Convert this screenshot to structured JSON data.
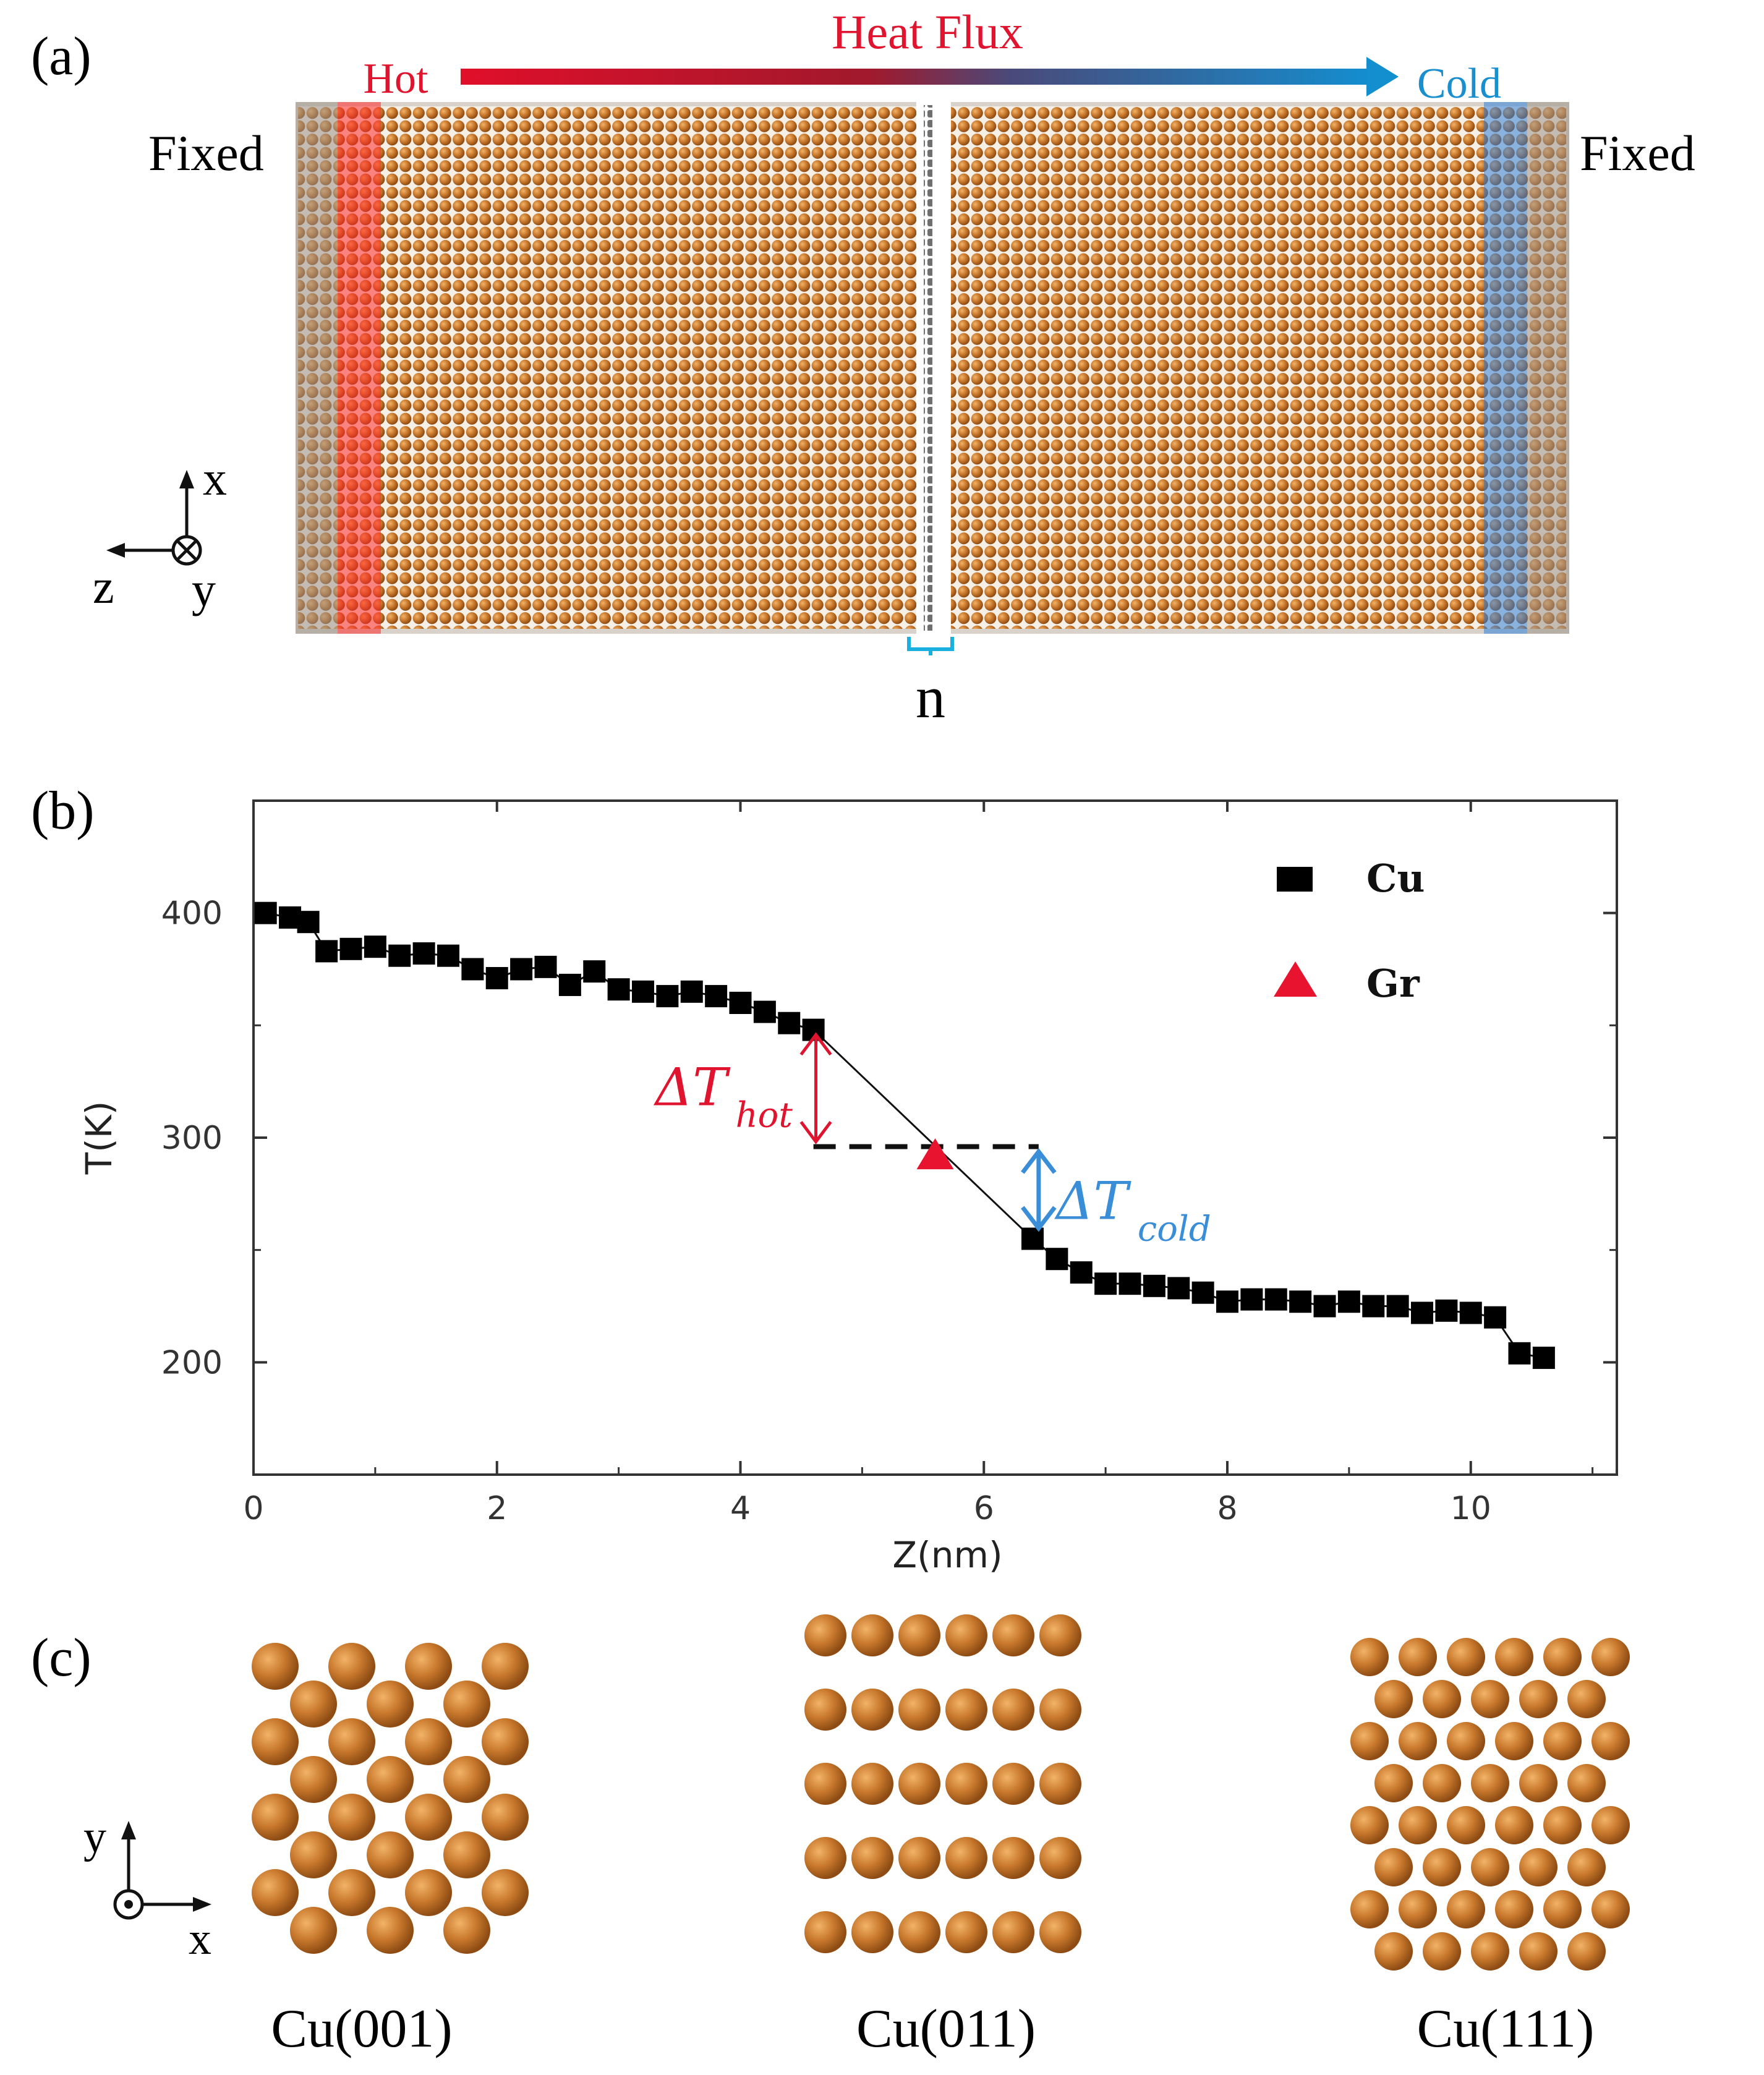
{
  "panel_a": {
    "label": "(a)",
    "heat_flux": "Heat Flux",
    "hot": "Hot",
    "cold": "Cold",
    "fixed_left": "Fixed",
    "fixed_right": "Fixed",
    "gap_label": "n",
    "axes": {
      "x": "x",
      "z": "z",
      "y": "y"
    },
    "colors": {
      "hot": "#e02a3c",
      "cold": "#1a8fd0",
      "atom": "#c8782c",
      "graphene": "#7a7a7a",
      "fixed": "#b9b0a6"
    }
  },
  "panel_b": {
    "label": "(b)",
    "annotation_hot": {
      "symbol": "ΔT",
      "sub": "hot"
    },
    "annotation_cold": {
      "symbol": "ΔT",
      "sub": "cold"
    },
    "chart_data": {
      "type": "scatter",
      "xlabel": "Z(nm)",
      "ylabel": "T(K)",
      "xlim": [
        0,
        11.2
      ],
      "ylim": [
        150,
        450
      ],
      "xticks": [
        0,
        2,
        4,
        6,
        8,
        10
      ],
      "xtick_labels": [
        "0",
        "2",
        "4",
        "6",
        "8",
        "10"
      ],
      "yticks": [
        200,
        300,
        400
      ],
      "ytick_labels": [
        "200",
        "300",
        "400"
      ],
      "legend_position": "top-right",
      "series": [
        {
          "name": "Cu",
          "marker": "square",
          "color": "#000000",
          "x": [
            0.1,
            0.3,
            0.45,
            0.6,
            0.8,
            1.0,
            1.2,
            1.4,
            1.6,
            1.8,
            2.0,
            2.2,
            2.4,
            2.6,
            2.8,
            3.0,
            3.2,
            3.4,
            3.6,
            3.8,
            4.0,
            4.2,
            4.4,
            4.6,
            6.4,
            6.6,
            6.8,
            7.0,
            7.2,
            7.4,
            7.6,
            7.8,
            8.0,
            8.2,
            8.4,
            8.6,
            8.8,
            9.0,
            9.2,
            9.4,
            9.6,
            9.8,
            10.0,
            10.2,
            10.4,
            10.6
          ],
          "values": [
            400,
            398,
            396,
            383,
            384,
            385,
            381,
            382,
            381,
            375,
            371,
            375,
            376,
            368,
            374,
            366,
            365,
            363,
            365,
            363,
            360,
            356,
            351,
            348,
            255,
            246,
            240,
            235,
            235,
            234,
            233,
            231,
            227,
            228,
            228,
            227,
            225,
            227,
            225,
            225,
            222,
            223,
            222,
            220,
            204,
            202
          ]
        },
        {
          "name": "Gr",
          "marker": "triangle",
          "color": "#e8132f",
          "x": [
            5.6
          ],
          "values": [
            292
          ]
        }
      ],
      "reference_line": {
        "y": 296,
        "x_from": 4.6,
        "x_to": 6.45,
        "style": "dashed"
      }
    }
  },
  "panel_c": {
    "label": "(c)",
    "structures": [
      "Cu(001)",
      "Cu(011)",
      "Cu(111)"
    ],
    "axes": {
      "y": "y",
      "x": "x"
    }
  }
}
